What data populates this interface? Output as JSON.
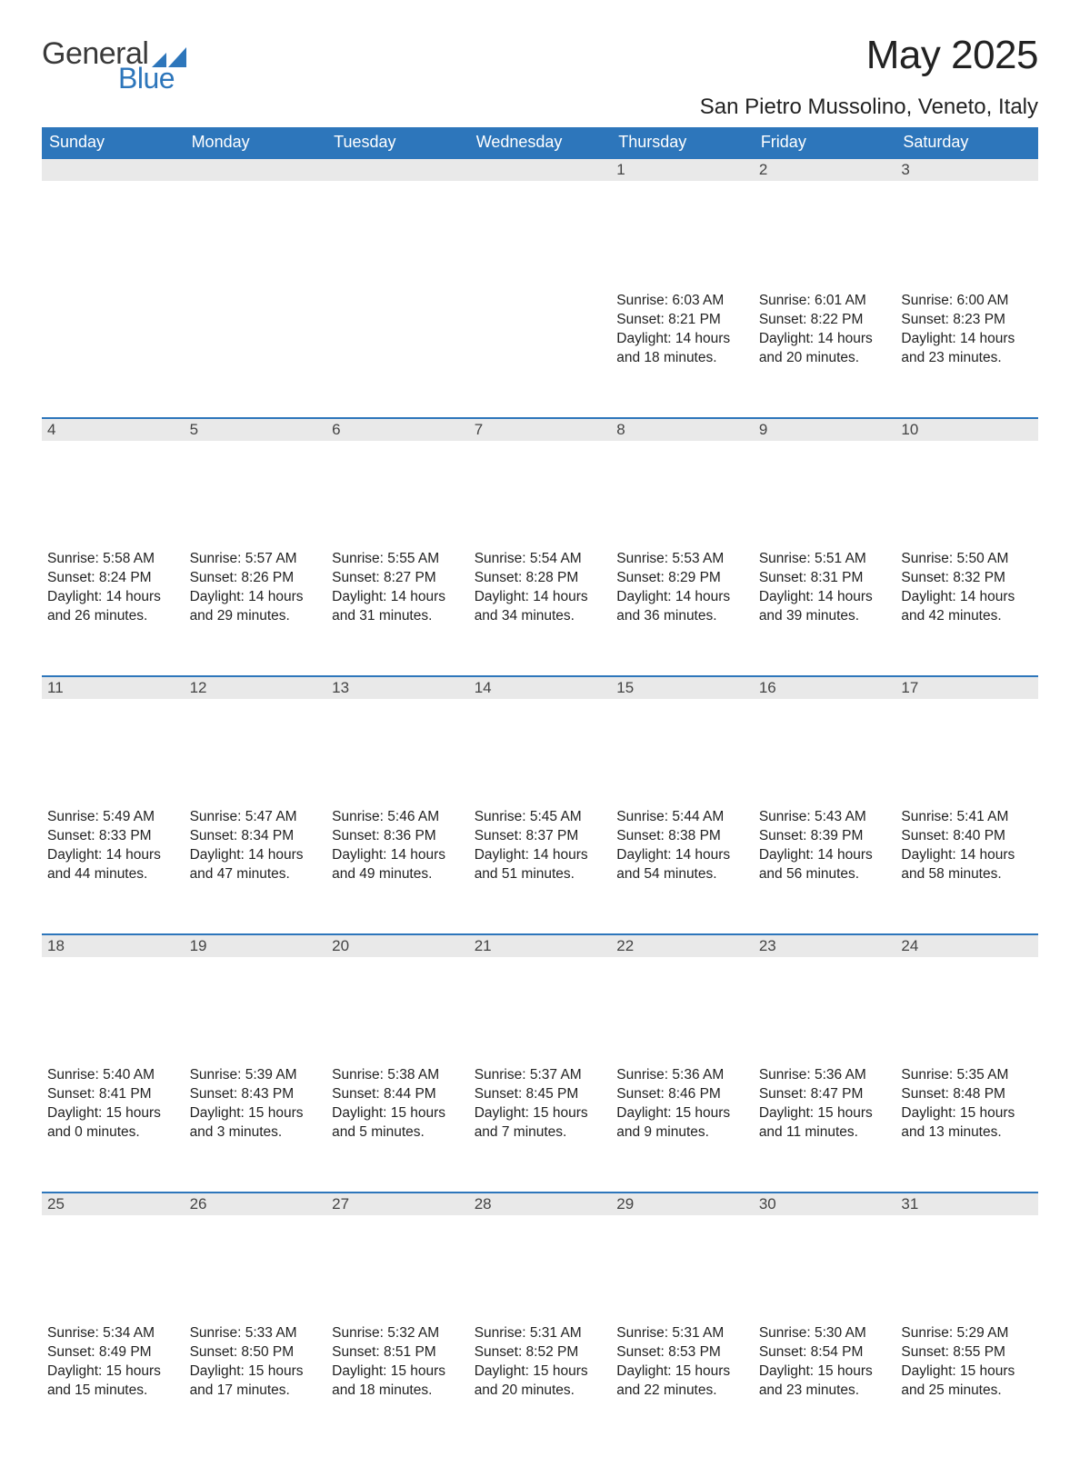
{
  "logo": {
    "text1": "General",
    "text2": "Blue"
  },
  "title": "May 2025",
  "location": "San Pietro Mussolino, Veneto, Italy",
  "colors": {
    "header_bg": "#2d76bb",
    "header_text": "#ffffff",
    "daynum_bg": "#e9e9e9",
    "row_divider": "#2d76bb",
    "body_text": "#222222",
    "page_bg": "#ffffff"
  },
  "typography": {
    "title_fontsize": 44,
    "location_fontsize": 24,
    "header_fontsize": 18,
    "body_fontsize": 15.5
  },
  "dayHeaders": [
    "Sunday",
    "Monday",
    "Tuesday",
    "Wednesday",
    "Thursday",
    "Friday",
    "Saturday"
  ],
  "weeks": [
    [
      null,
      null,
      null,
      null,
      {
        "n": "1",
        "sunrise": "Sunrise: 6:03 AM",
        "sunset": "Sunset: 8:21 PM",
        "daylight": "Daylight: 14 hours and 18 minutes."
      },
      {
        "n": "2",
        "sunrise": "Sunrise: 6:01 AM",
        "sunset": "Sunset: 8:22 PM",
        "daylight": "Daylight: 14 hours and 20 minutes."
      },
      {
        "n": "3",
        "sunrise": "Sunrise: 6:00 AM",
        "sunset": "Sunset: 8:23 PM",
        "daylight": "Daylight: 14 hours and 23 minutes."
      }
    ],
    [
      {
        "n": "4",
        "sunrise": "Sunrise: 5:58 AM",
        "sunset": "Sunset: 8:24 PM",
        "daylight": "Daylight: 14 hours and 26 minutes."
      },
      {
        "n": "5",
        "sunrise": "Sunrise: 5:57 AM",
        "sunset": "Sunset: 8:26 PM",
        "daylight": "Daylight: 14 hours and 29 minutes."
      },
      {
        "n": "6",
        "sunrise": "Sunrise: 5:55 AM",
        "sunset": "Sunset: 8:27 PM",
        "daylight": "Daylight: 14 hours and 31 minutes."
      },
      {
        "n": "7",
        "sunrise": "Sunrise: 5:54 AM",
        "sunset": "Sunset: 8:28 PM",
        "daylight": "Daylight: 14 hours and 34 minutes."
      },
      {
        "n": "8",
        "sunrise": "Sunrise: 5:53 AM",
        "sunset": "Sunset: 8:29 PM",
        "daylight": "Daylight: 14 hours and 36 minutes."
      },
      {
        "n": "9",
        "sunrise": "Sunrise: 5:51 AM",
        "sunset": "Sunset: 8:31 PM",
        "daylight": "Daylight: 14 hours and 39 minutes."
      },
      {
        "n": "10",
        "sunrise": "Sunrise: 5:50 AM",
        "sunset": "Sunset: 8:32 PM",
        "daylight": "Daylight: 14 hours and 42 minutes."
      }
    ],
    [
      {
        "n": "11",
        "sunrise": "Sunrise: 5:49 AM",
        "sunset": "Sunset: 8:33 PM",
        "daylight": "Daylight: 14 hours and 44 minutes."
      },
      {
        "n": "12",
        "sunrise": "Sunrise: 5:47 AM",
        "sunset": "Sunset: 8:34 PM",
        "daylight": "Daylight: 14 hours and 47 minutes."
      },
      {
        "n": "13",
        "sunrise": "Sunrise: 5:46 AM",
        "sunset": "Sunset: 8:36 PM",
        "daylight": "Daylight: 14 hours and 49 minutes."
      },
      {
        "n": "14",
        "sunrise": "Sunrise: 5:45 AM",
        "sunset": "Sunset: 8:37 PM",
        "daylight": "Daylight: 14 hours and 51 minutes."
      },
      {
        "n": "15",
        "sunrise": "Sunrise: 5:44 AM",
        "sunset": "Sunset: 8:38 PM",
        "daylight": "Daylight: 14 hours and 54 minutes."
      },
      {
        "n": "16",
        "sunrise": "Sunrise: 5:43 AM",
        "sunset": "Sunset: 8:39 PM",
        "daylight": "Daylight: 14 hours and 56 minutes."
      },
      {
        "n": "17",
        "sunrise": "Sunrise: 5:41 AM",
        "sunset": "Sunset: 8:40 PM",
        "daylight": "Daylight: 14 hours and 58 minutes."
      }
    ],
    [
      {
        "n": "18",
        "sunrise": "Sunrise: 5:40 AM",
        "sunset": "Sunset: 8:41 PM",
        "daylight": "Daylight: 15 hours and 0 minutes."
      },
      {
        "n": "19",
        "sunrise": "Sunrise: 5:39 AM",
        "sunset": "Sunset: 8:43 PM",
        "daylight": "Daylight: 15 hours and 3 minutes."
      },
      {
        "n": "20",
        "sunrise": "Sunrise: 5:38 AM",
        "sunset": "Sunset: 8:44 PM",
        "daylight": "Daylight: 15 hours and 5 minutes."
      },
      {
        "n": "21",
        "sunrise": "Sunrise: 5:37 AM",
        "sunset": "Sunset: 8:45 PM",
        "daylight": "Daylight: 15 hours and 7 minutes."
      },
      {
        "n": "22",
        "sunrise": "Sunrise: 5:36 AM",
        "sunset": "Sunset: 8:46 PM",
        "daylight": "Daylight: 15 hours and 9 minutes."
      },
      {
        "n": "23",
        "sunrise": "Sunrise: 5:36 AM",
        "sunset": "Sunset: 8:47 PM",
        "daylight": "Daylight: 15 hours and 11 minutes."
      },
      {
        "n": "24",
        "sunrise": "Sunrise: 5:35 AM",
        "sunset": "Sunset: 8:48 PM",
        "daylight": "Daylight: 15 hours and 13 minutes."
      }
    ],
    [
      {
        "n": "25",
        "sunrise": "Sunrise: 5:34 AM",
        "sunset": "Sunset: 8:49 PM",
        "daylight": "Daylight: 15 hours and 15 minutes."
      },
      {
        "n": "26",
        "sunrise": "Sunrise: 5:33 AM",
        "sunset": "Sunset: 8:50 PM",
        "daylight": "Daylight: 15 hours and 17 minutes."
      },
      {
        "n": "27",
        "sunrise": "Sunrise: 5:32 AM",
        "sunset": "Sunset: 8:51 PM",
        "daylight": "Daylight: 15 hours and 18 minutes."
      },
      {
        "n": "28",
        "sunrise": "Sunrise: 5:31 AM",
        "sunset": "Sunset: 8:52 PM",
        "daylight": "Daylight: 15 hours and 20 minutes."
      },
      {
        "n": "29",
        "sunrise": "Sunrise: 5:31 AM",
        "sunset": "Sunset: 8:53 PM",
        "daylight": "Daylight: 15 hours and 22 minutes."
      },
      {
        "n": "30",
        "sunrise": "Sunrise: 5:30 AM",
        "sunset": "Sunset: 8:54 PM",
        "daylight": "Daylight: 15 hours and 23 minutes."
      },
      {
        "n": "31",
        "sunrise": "Sunrise: 5:29 AM",
        "sunset": "Sunset: 8:55 PM",
        "daylight": "Daylight: 15 hours and 25 minutes."
      }
    ]
  ]
}
